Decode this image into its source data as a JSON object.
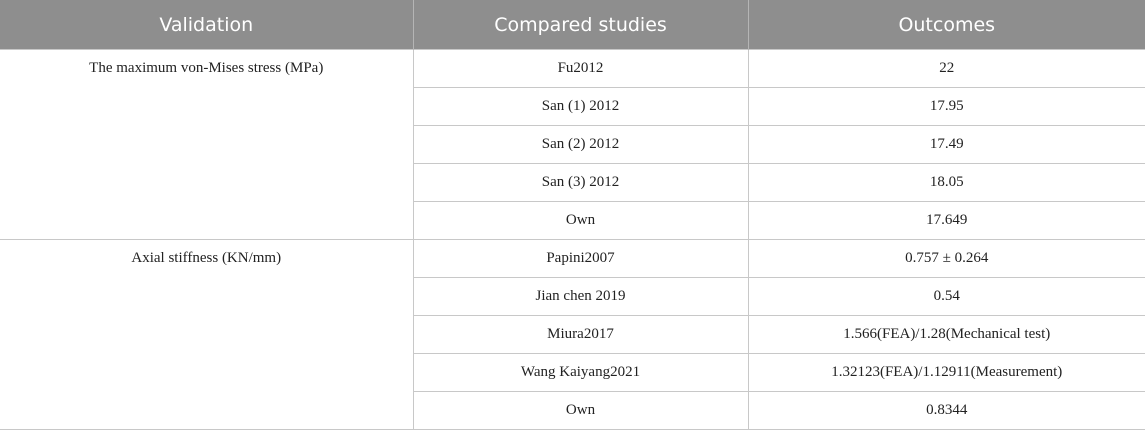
{
  "table": {
    "header": [
      "Validation",
      "Compared studies",
      "Outcomes"
    ],
    "groups": [
      {
        "validation": "The maximum von-Mises stress (MPa)",
        "rows": [
          [
            "Fu2012",
            "22"
          ],
          [
            "San (1) 2012",
            "17.95"
          ],
          [
            "San (2) 2012",
            "17.49"
          ],
          [
            "San (3) 2012",
            "18.05"
          ],
          [
            "Own",
            "17.649"
          ]
        ]
      },
      {
        "validation": "Axial stiffness (KN/mm)",
        "rows": [
          [
            "Papini2007",
            "0.757 ± 0.264"
          ],
          [
            "Jian chen 2019",
            "0.54"
          ],
          [
            "Miura2017",
            "1.566(FEA)/1.28(Mechanical test)"
          ],
          [
            "Wang Kaiyang2021",
            "1.32123(FEA)/1.12911(Measurement)"
          ],
          [
            "Own",
            "0.8344"
          ]
        ]
      }
    ]
  }
}
